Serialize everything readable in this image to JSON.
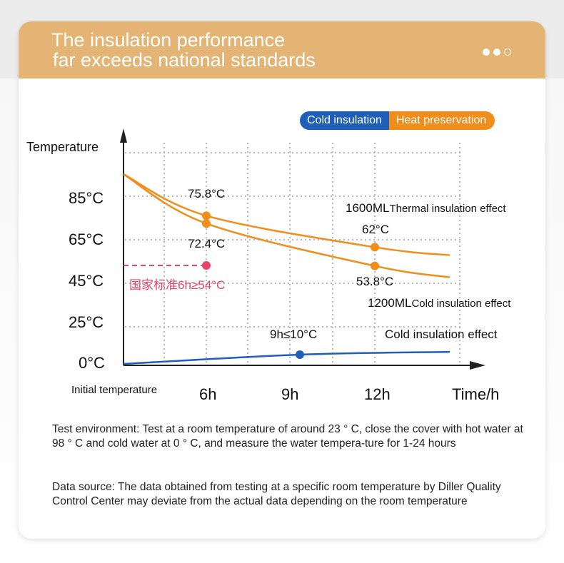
{
  "header": {
    "title_line1": "The insulation performance",
    "title_line2": "far exceeds national standards",
    "page_dots": [
      true,
      true,
      false
    ]
  },
  "legend": {
    "cold": "Cold insulation",
    "heat": "Heat preservation"
  },
  "colors": {
    "header": "#e3b474",
    "heat": "#f18d1b",
    "cold": "#1f5fb8",
    "standard": "#e8456a"
  },
  "chart_data": {
    "type": "line",
    "ylabel": "Temperature",
    "xlabel": "Time/h",
    "x_origin_label": "Initial temperature",
    "x_ticks": [
      "6h",
      "9h",
      "12h"
    ],
    "y_ticks": [
      "0°C",
      "25°C",
      "45°C",
      "65°C",
      "85°C"
    ],
    "grid": true,
    "series": [
      {
        "name": "1600ML",
        "label_main": "1600ML",
        "label_sub": "Thermal insulation effect",
        "color": "#f18d1b",
        "points": [
          [
            0,
            94
          ],
          [
            6,
            75.8
          ],
          [
            12,
            62
          ],
          [
            15,
            58.5
          ]
        ],
        "markers": [
          {
            "x": 6,
            "y": 75.8,
            "label": "75.8°C"
          },
          {
            "x": 12,
            "y": 62,
            "label": "62°C"
          }
        ]
      },
      {
        "name": "1200ML",
        "label_main": "1200ML",
        "label_sub": "Cold insulation effect",
        "color": "#f18d1b",
        "points": [
          [
            0,
            94
          ],
          [
            6,
            72.4
          ],
          [
            12,
            53.8
          ],
          [
            15,
            49
          ]
        ],
        "markers": [
          {
            "x": 6,
            "y": 72.4,
            "label": "72.4°C"
          },
          {
            "x": 12,
            "y": 53.8,
            "label": "53.8°C"
          }
        ]
      },
      {
        "name": "Cold",
        "label_sub": "Cold insulation effect",
        "color": "#1f5fb8",
        "points": [
          [
            0,
            0
          ],
          [
            9,
            10
          ],
          [
            15,
            12
          ]
        ],
        "markers": [
          {
            "x": 9,
            "y": 10,
            "label": "9h≤10°C"
          }
        ]
      }
    ],
    "standard": {
      "x": 6,
      "y": 54,
      "label": "国家标准6h≥54°C"
    }
  },
  "notes": {
    "test_env": "Test environment: Test at a room temperature of around 23 ° C, close the cover with hot water at 98 ° C and cold water at 0 ° C, and measure the water tempera-ture for 1-24 hours",
    "data_source": "Data source: The data obtained from testing at a specific room temperature by Diller Quality Control Center may deviate from the actual data depending on the room temperature"
  }
}
